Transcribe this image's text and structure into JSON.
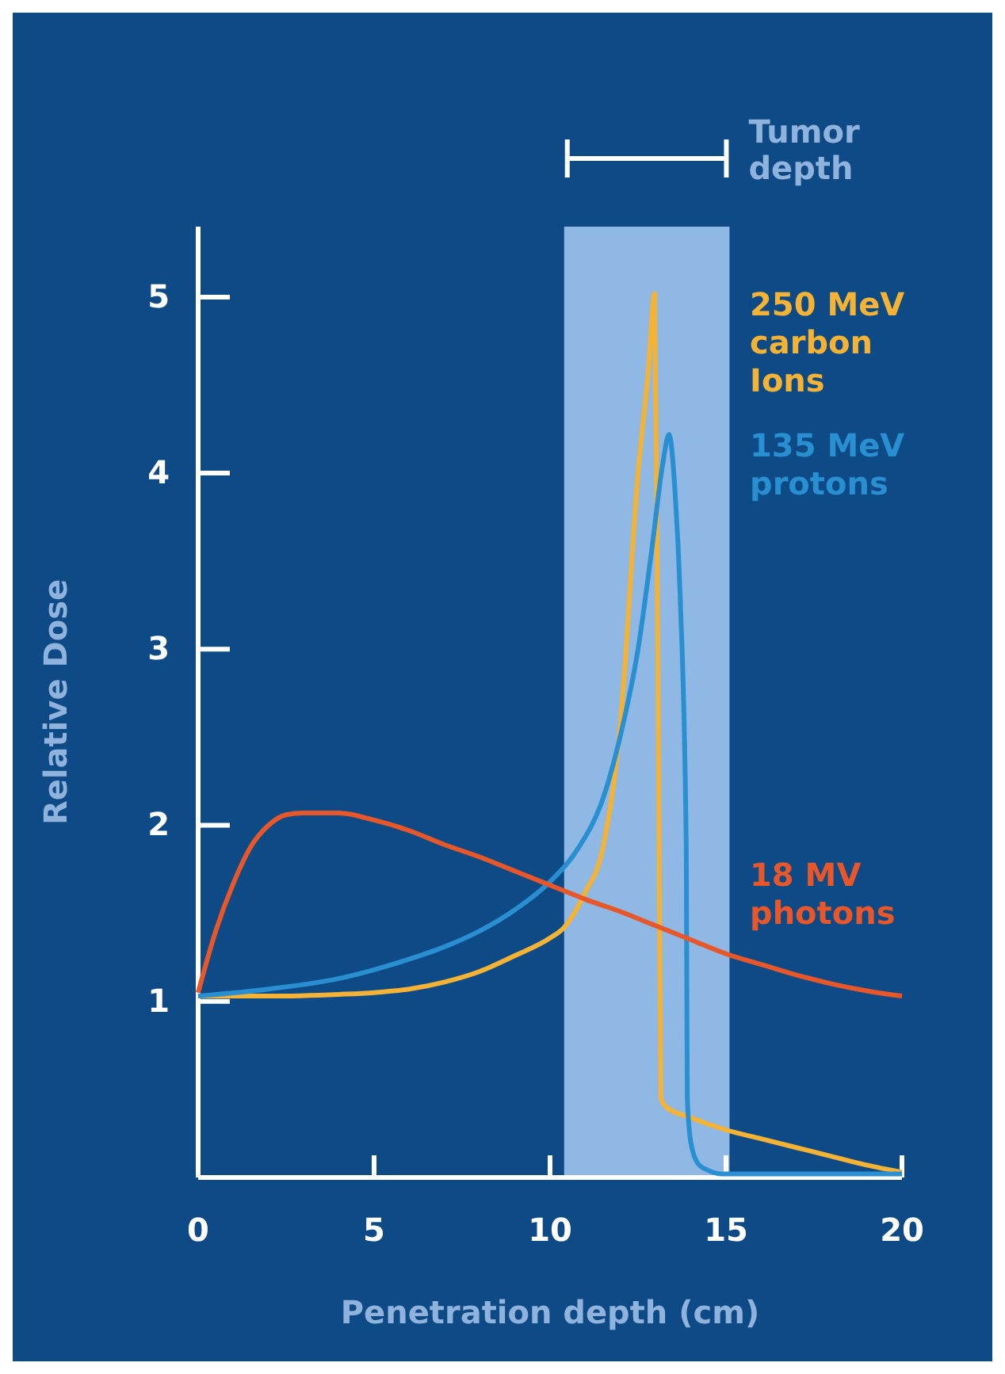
{
  "chart_data": {
    "type": "line",
    "xlabel": "Penetration depth (cm)",
    "ylabel": "Relative Dose",
    "xlim": [
      0,
      20
    ],
    "ylim": [
      0,
      5.4
    ],
    "xticks": [
      0,
      5,
      10,
      15,
      20
    ],
    "yticks": [
      1,
      2,
      3,
      4,
      5
    ],
    "grid": false,
    "legend": false,
    "marker": "none",
    "line_style": "solid",
    "bands": [
      {
        "axis": "x",
        "from": 10.4,
        "to": 15.1,
        "label": "Tumor depth",
        "color": "#8fb8e4"
      }
    ],
    "series": [
      {
        "name": "250 MeV carbon Ions",
        "color": "#f5b335",
        "x": [
          0,
          2,
          4,
          5,
          6,
          7,
          8,
          9,
          10,
          10.4,
          11,
          11.5,
          12,
          12.5,
          12.8,
          12.97,
          13.05,
          13.1,
          13.15,
          13.3,
          14,
          15,
          16,
          17,
          18,
          19,
          20
        ],
        "values": [
          1.03,
          1.03,
          1.04,
          1.05,
          1.07,
          1.11,
          1.17,
          1.26,
          1.36,
          1.42,
          1.62,
          1.87,
          2.58,
          4.0,
          4.6,
          5.02,
          3.29,
          1.87,
          0.45,
          0.4,
          0.34,
          0.27,
          0.22,
          0.17,
          0.12,
          0.07,
          0.03
        ]
      },
      {
        "name": "135 MeV protons",
        "color": "#2a8fd0",
        "x": [
          0,
          2,
          4,
          5,
          6,
          7,
          8,
          9,
          10,
          10.8,
          11.5,
          12,
          12.5,
          12.9,
          13.2,
          13.38,
          13.55,
          13.7,
          13.87,
          13.9,
          14.0,
          14.2,
          14.5,
          14.9,
          20
        ],
        "values": [
          1.03,
          1.07,
          1.13,
          1.18,
          1.24,
          1.31,
          1.4,
          1.52,
          1.68,
          1.87,
          2.15,
          2.51,
          3.0,
          3.58,
          4.05,
          4.22,
          3.9,
          3.29,
          1.87,
          0.45,
          0.2,
          0.08,
          0.04,
          0.02,
          0.02
        ]
      },
      {
        "name": "18 MV photons",
        "color": "#e8572a",
        "x": [
          0,
          0.5,
          1,
          1.5,
          2,
          2.5,
          3,
          4,
          5,
          6,
          7,
          8,
          9,
          10,
          10.5,
          11,
          12,
          13,
          14,
          15,
          16,
          17,
          18,
          19,
          20
        ],
        "values": [
          1.05,
          1.4,
          1.67,
          1.88,
          2.0,
          2.06,
          2.07,
          2.07,
          2.03,
          1.97,
          1.89,
          1.82,
          1.74,
          1.66,
          1.62,
          1.58,
          1.51,
          1.43,
          1.35,
          1.27,
          1.21,
          1.15,
          1.1,
          1.06,
          1.03
        ]
      }
    ]
  }
}
